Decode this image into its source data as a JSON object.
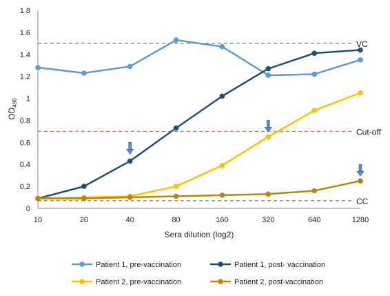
{
  "chart_data": {
    "type": "line",
    "xlabel": "Sera dilution (log2)",
    "ylabel": "OD",
    "ylabel_sub": "490",
    "ylim": [
      0,
      1.8
    ],
    "yticks": [
      0,
      0.2,
      0.4,
      0.6,
      0.8,
      1,
      1.2,
      1.4,
      1.6,
      1.8
    ],
    "ytick_labels": [
      "0",
      "0.2",
      "0.4",
      "0.6",
      "0.8",
      "1",
      "1.2",
      "1.4",
      "1.6",
      "1.8"
    ],
    "categories": [
      "10",
      "20",
      "40",
      "80",
      "160",
      "320",
      "640",
      "1280"
    ],
    "grid": false,
    "legend_position": "bottom",
    "series": [
      {
        "name": "Patient 1, pre-vaccination",
        "color": "#5b9bd5",
        "values": [
          1.28,
          1.23,
          1.29,
          1.53,
          1.47,
          1.21,
          1.22,
          1.35
        ]
      },
      {
        "name": "Patient 1, post- vaccination",
        "color": "#1f4e79",
        "values": [
          0.09,
          0.2,
          0.43,
          0.73,
          1.02,
          1.27,
          1.41,
          1.44
        ]
      },
      {
        "name": "Patient 2, pre-vaccination",
        "color": "#ffc000",
        "values": [
          0.09,
          0.1,
          0.11,
          0.2,
          0.39,
          0.65,
          0.89,
          1.05
        ]
      },
      {
        "name": "Patient 2, post-vaccination",
        "color": "#b8860b",
        "values": [
          0.09,
          0.09,
          0.1,
          0.11,
          0.12,
          0.13,
          0.16,
          0.25
        ]
      }
    ],
    "reference_lines": [
      {
        "label": "VC",
        "value": 1.5,
        "color": "#555555"
      },
      {
        "label": "Cut-off",
        "value": 0.7,
        "color": "#e05050"
      },
      {
        "label": "CC",
        "value": 0.07,
        "color": "#555555"
      }
    ],
    "arrows": [
      {
        "category": "40",
        "value": 0.6
      },
      {
        "category": "320",
        "value": 0.8
      },
      {
        "category": "1280",
        "value": 0.4
      }
    ],
    "arrow_color": "#5b8fd0"
  }
}
